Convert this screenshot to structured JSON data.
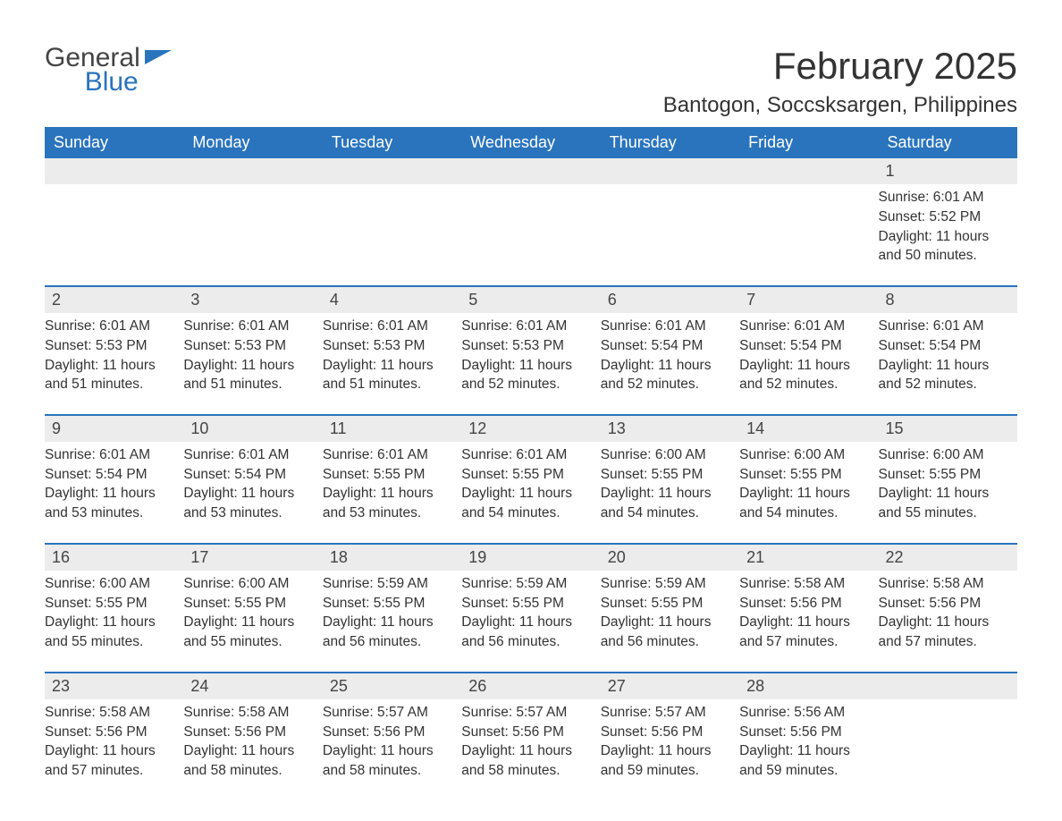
{
  "logo": {
    "general": "General",
    "blue": "Blue"
  },
  "title": "February 2025",
  "location": "Bantogon, Soccsksargen, Philippines",
  "colors": {
    "header_bg": "#2a74bd",
    "header_text": "#ffffff",
    "daynum_bg": "#ececec",
    "text": "#333333",
    "rule": "#2a74bd"
  },
  "fonts": {
    "title_size_pt": 32,
    "location_size_pt": 18,
    "weekday_size_pt": 14,
    "body_size_pt": 12
  },
  "weekdays": [
    "Sunday",
    "Monday",
    "Tuesday",
    "Wednesday",
    "Thursday",
    "Friday",
    "Saturday"
  ],
  "labels": {
    "sunrise": "Sunrise",
    "sunset": "Sunset",
    "daylight_prefix": "Daylight",
    "daylight_mid": "hours and",
    "daylight_suffix": "minutes."
  },
  "weeks": [
    [
      null,
      null,
      null,
      null,
      null,
      null,
      {
        "d": "1",
        "sunrise": "6:01 AM",
        "sunset": "5:52 PM",
        "dl_h": "11",
        "dl_m": "50"
      }
    ],
    [
      {
        "d": "2",
        "sunrise": "6:01 AM",
        "sunset": "5:53 PM",
        "dl_h": "11",
        "dl_m": "51"
      },
      {
        "d": "3",
        "sunrise": "6:01 AM",
        "sunset": "5:53 PM",
        "dl_h": "11",
        "dl_m": "51"
      },
      {
        "d": "4",
        "sunrise": "6:01 AM",
        "sunset": "5:53 PM",
        "dl_h": "11",
        "dl_m": "51"
      },
      {
        "d": "5",
        "sunrise": "6:01 AM",
        "sunset": "5:53 PM",
        "dl_h": "11",
        "dl_m": "52"
      },
      {
        "d": "6",
        "sunrise": "6:01 AM",
        "sunset": "5:54 PM",
        "dl_h": "11",
        "dl_m": "52"
      },
      {
        "d": "7",
        "sunrise": "6:01 AM",
        "sunset": "5:54 PM",
        "dl_h": "11",
        "dl_m": "52"
      },
      {
        "d": "8",
        "sunrise": "6:01 AM",
        "sunset": "5:54 PM",
        "dl_h": "11",
        "dl_m": "52"
      }
    ],
    [
      {
        "d": "9",
        "sunrise": "6:01 AM",
        "sunset": "5:54 PM",
        "dl_h": "11",
        "dl_m": "53"
      },
      {
        "d": "10",
        "sunrise": "6:01 AM",
        "sunset": "5:54 PM",
        "dl_h": "11",
        "dl_m": "53"
      },
      {
        "d": "11",
        "sunrise": "6:01 AM",
        "sunset": "5:55 PM",
        "dl_h": "11",
        "dl_m": "53"
      },
      {
        "d": "12",
        "sunrise": "6:01 AM",
        "sunset": "5:55 PM",
        "dl_h": "11",
        "dl_m": "54"
      },
      {
        "d": "13",
        "sunrise": "6:00 AM",
        "sunset": "5:55 PM",
        "dl_h": "11",
        "dl_m": "54"
      },
      {
        "d": "14",
        "sunrise": "6:00 AM",
        "sunset": "5:55 PM",
        "dl_h": "11",
        "dl_m": "54"
      },
      {
        "d": "15",
        "sunrise": "6:00 AM",
        "sunset": "5:55 PM",
        "dl_h": "11",
        "dl_m": "55"
      }
    ],
    [
      {
        "d": "16",
        "sunrise": "6:00 AM",
        "sunset": "5:55 PM",
        "dl_h": "11",
        "dl_m": "55"
      },
      {
        "d": "17",
        "sunrise": "6:00 AM",
        "sunset": "5:55 PM",
        "dl_h": "11",
        "dl_m": "55"
      },
      {
        "d": "18",
        "sunrise": "5:59 AM",
        "sunset": "5:55 PM",
        "dl_h": "11",
        "dl_m": "56"
      },
      {
        "d": "19",
        "sunrise": "5:59 AM",
        "sunset": "5:55 PM",
        "dl_h": "11",
        "dl_m": "56"
      },
      {
        "d": "20",
        "sunrise": "5:59 AM",
        "sunset": "5:55 PM",
        "dl_h": "11",
        "dl_m": "56"
      },
      {
        "d": "21",
        "sunrise": "5:58 AM",
        "sunset": "5:56 PM",
        "dl_h": "11",
        "dl_m": "57"
      },
      {
        "d": "22",
        "sunrise": "5:58 AM",
        "sunset": "5:56 PM",
        "dl_h": "11",
        "dl_m": "57"
      }
    ],
    [
      {
        "d": "23",
        "sunrise": "5:58 AM",
        "sunset": "5:56 PM",
        "dl_h": "11",
        "dl_m": "57"
      },
      {
        "d": "24",
        "sunrise": "5:58 AM",
        "sunset": "5:56 PM",
        "dl_h": "11",
        "dl_m": "58"
      },
      {
        "d": "25",
        "sunrise": "5:57 AM",
        "sunset": "5:56 PM",
        "dl_h": "11",
        "dl_m": "58"
      },
      {
        "d": "26",
        "sunrise": "5:57 AM",
        "sunset": "5:56 PM",
        "dl_h": "11",
        "dl_m": "58"
      },
      {
        "d": "27",
        "sunrise": "5:57 AM",
        "sunset": "5:56 PM",
        "dl_h": "11",
        "dl_m": "59"
      },
      {
        "d": "28",
        "sunrise": "5:56 AM",
        "sunset": "5:56 PM",
        "dl_h": "11",
        "dl_m": "59"
      },
      null
    ]
  ]
}
